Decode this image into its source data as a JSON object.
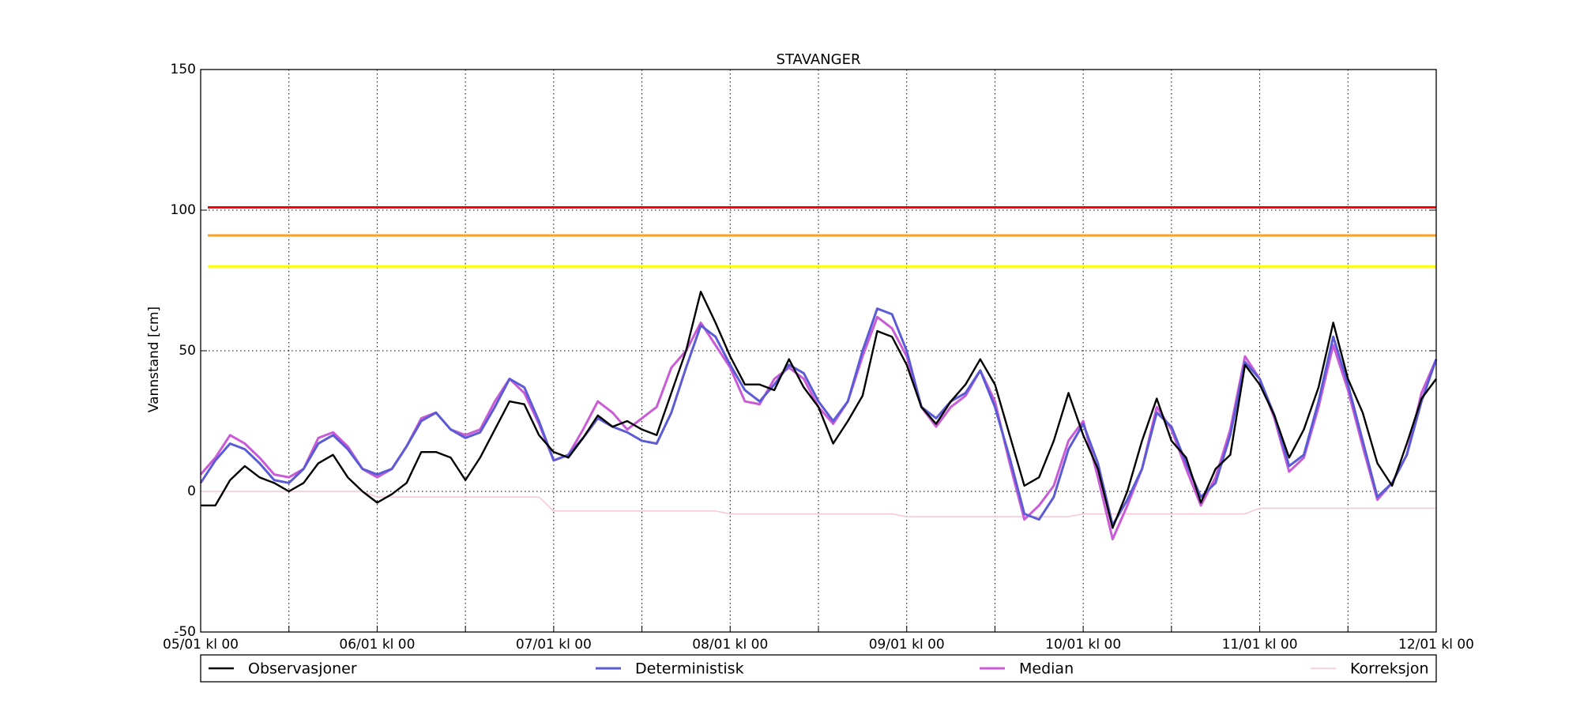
{
  "chart_data": {
    "type": "line",
    "title": "STAVANGER",
    "y_label": "Vannstand [cm]",
    "x": [
      0,
      2,
      4,
      6,
      8,
      10,
      12,
      14,
      16,
      18,
      20,
      22,
      24,
      26,
      28,
      30,
      32,
      34,
      36,
      38,
      40,
      42,
      44,
      46,
      48,
      50,
      52,
      54,
      56,
      58,
      60,
      62,
      64,
      66,
      68,
      70,
      72,
      74,
      76,
      78,
      80,
      82,
      84,
      86,
      88,
      90,
      92,
      94,
      96,
      98,
      100,
      102,
      104,
      106,
      108,
      110,
      112,
      114,
      116,
      118,
      120,
      122,
      124,
      126,
      128,
      130,
      132,
      134,
      136,
      138,
      140,
      142,
      144,
      146,
      148,
      150,
      152,
      154,
      156,
      158,
      160,
      162,
      164,
      166,
      168
    ],
    "xlim": [
      0,
      168
    ],
    "xticks": [
      {
        "value": 0,
        "label": "05/01 kl 00"
      },
      {
        "value": 24,
        "label": "06/01 kl 00"
      },
      {
        "value": 48,
        "label": "07/01 kl 00"
      },
      {
        "value": 72,
        "label": "08/01 kl 00"
      },
      {
        "value": 96,
        "label": "09/01 kl 00"
      },
      {
        "value": 120,
        "label": "10/01 kl 00"
      },
      {
        "value": 144,
        "label": "11/01 kl 00"
      },
      {
        "value": 168,
        "label": "12/01 kl 00"
      }
    ],
    "xminorticks": [
      12,
      36,
      60,
      84,
      108,
      132,
      156
    ],
    "ylim": [
      -50,
      150
    ],
    "yticks": [
      -50,
      0,
      50,
      100,
      150
    ],
    "grid": true,
    "thresholds": [
      {
        "value": 101,
        "color": "#ff0000"
      },
      {
        "value": 91,
        "color": "#ffa020"
      },
      {
        "value": 80,
        "color": "#ffff00"
      }
    ],
    "legend": "bottom",
    "series": [
      {
        "name": "Observasjoner",
        "color": "#000000",
        "width": 2.4,
        "values": [
          -5,
          -5,
          4,
          9,
          5,
          3,
          0,
          3,
          10,
          13,
          5,
          0,
          -4,
          -1,
          3,
          14,
          14,
          12,
          4,
          12,
          22,
          32,
          31,
          20,
          14,
          12,
          19,
          27,
          23,
          25,
          22,
          20,
          35,
          50,
          71,
          60,
          48,
          38,
          38,
          36,
          47,
          37,
          30,
          17,
          25,
          34,
          57,
          55,
          45,
          30,
          24,
          32,
          38,
          47,
          38,
          20,
          2,
          5,
          18,
          35,
          20,
          8,
          -13,
          0,
          18,
          33,
          18,
          12,
          -4,
          8,
          13,
          45,
          38,
          27,
          12,
          22,
          37,
          60,
          40,
          28,
          10,
          2,
          17,
          33,
          40
        ]
      },
      {
        "name": "Deterministisk",
        "color": "#5b5bd6",
        "width": 3,
        "values": [
          3,
          11,
          17,
          15,
          10,
          4,
          3,
          8,
          17,
          20,
          15,
          8,
          6,
          8,
          16,
          25,
          28,
          22,
          19,
          21,
          30,
          40,
          37,
          25,
          11,
          13,
          19,
          26,
          23,
          21,
          18,
          17,
          28,
          44,
          59,
          55,
          45,
          36,
          32,
          38,
          45,
          42,
          32,
          25,
          32,
          50,
          65,
          63,
          50,
          30,
          26,
          32,
          35,
          43,
          30,
          12,
          -8,
          -10,
          -2,
          15,
          24,
          10,
          -12,
          -3,
          8,
          28,
          23,
          10,
          -2,
          3,
          20,
          46,
          40,
          27,
          9,
          13,
          32,
          55,
          38,
          18,
          -2,
          3,
          13,
          32,
          47
        ]
      },
      {
        "name": "Median",
        "color": "#c95bd6",
        "width": 3,
        "values": [
          6,
          12,
          20,
          17,
          12,
          6,
          5,
          8,
          19,
          21,
          16,
          8,
          5,
          8,
          16,
          26,
          28,
          22,
          20,
          22,
          32,
          40,
          35,
          24,
          11,
          13,
          22,
          32,
          28,
          22,
          26,
          30,
          44,
          50,
          60,
          52,
          44,
          32,
          31,
          40,
          44,
          40,
          30,
          24,
          32,
          48,
          62,
          58,
          48,
          30,
          23,
          30,
          34,
          43,
          32,
          10,
          -10,
          -5,
          2,
          18,
          25,
          5,
          -17,
          -5,
          8,
          30,
          22,
          8,
          -5,
          5,
          22,
          48,
          40,
          26,
          7,
          12,
          30,
          52,
          36,
          16,
          -3,
          3,
          13,
          35,
          47
        ]
      },
      {
        "name": "Korreksjon",
        "color": "#f7c6d6",
        "width": 1.5,
        "values": [
          0,
          0,
          0,
          0,
          0,
          0,
          0,
          0,
          0,
          0,
          0,
          0,
          -2,
          -2,
          -2,
          -2,
          -2,
          -2,
          -2,
          -2,
          -2,
          -2,
          -2,
          -2,
          -7,
          -7,
          -7,
          -7,
          -7,
          -7,
          -7,
          -7,
          -7,
          -7,
          -7,
          -7,
          -8,
          -8,
          -8,
          -8,
          -8,
          -8,
          -8,
          -8,
          -8,
          -8,
          -8,
          -8,
          -9,
          -9,
          -9,
          -9,
          -9,
          -9,
          -9,
          -9,
          -9,
          -9,
          -9,
          -9,
          -8,
          -8,
          -8,
          -8,
          -8,
          -8,
          -8,
          -8,
          -8,
          -8,
          -8,
          -8,
          -6,
          -6,
          -6,
          -6,
          -6,
          -6,
          -6,
          -6,
          -6,
          -6,
          -6,
          -6,
          -6
        ]
      }
    ]
  }
}
